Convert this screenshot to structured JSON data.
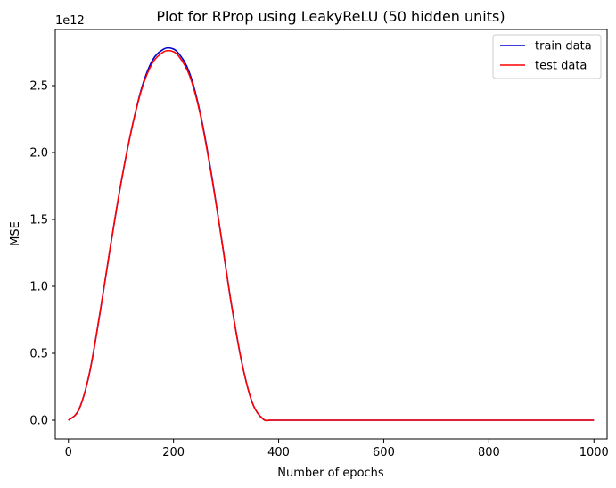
{
  "chart_data": {
    "type": "line",
    "title": "Plot for RProp using LeakyReLU (50 hidden units)",
    "xlabel": "Number of epochs",
    "ylabel": "MSE",
    "y_offset_label": "1e12",
    "y_scale": 1000000000000.0,
    "xlim": [
      -25,
      1025
    ],
    "ylim": [
      -0.14,
      2.92
    ],
    "xticks": [
      0,
      200,
      400,
      600,
      800,
      1000
    ],
    "xtick_labels": [
      "0",
      "200",
      "400",
      "600",
      "800",
      "1000"
    ],
    "yticks": [
      0.0,
      0.5,
      1.0,
      1.5,
      2.0,
      2.5
    ],
    "ytick_labels": [
      "0.0",
      "0.5",
      "1.0",
      "1.5",
      "2.0",
      "2.5"
    ],
    "grid": false,
    "legend_location": "top-right",
    "series": [
      {
        "name": "train data",
        "color": "#0000cc",
        "x": [
          0,
          20,
          40,
          60,
          80,
          100,
          120,
          140,
          160,
          180,
          195,
          210,
          230,
          250,
          270,
          290,
          310,
          330,
          350,
          370,
          385,
          400,
          500,
          600,
          700,
          800,
          900,
          1000
        ],
        "y": [
          0.0,
          0.08,
          0.35,
          0.8,
          1.3,
          1.77,
          2.17,
          2.49,
          2.69,
          2.77,
          2.78,
          2.74,
          2.6,
          2.31,
          1.89,
          1.39,
          0.87,
          0.43,
          0.13,
          0.01,
          0.0,
          0.0,
          0.0,
          0.0,
          0.0,
          0.0,
          0.0,
          0.0
        ]
      },
      {
        "name": "test data",
        "color": "#ff0000",
        "x": [
          0,
          20,
          40,
          60,
          80,
          100,
          120,
          140,
          160,
          180,
          195,
          210,
          230,
          250,
          270,
          290,
          310,
          330,
          350,
          370,
          385,
          400,
          500,
          600,
          700,
          800,
          900,
          1000
        ],
        "y": [
          0.0,
          0.08,
          0.35,
          0.8,
          1.3,
          1.77,
          2.17,
          2.48,
          2.67,
          2.75,
          2.76,
          2.72,
          2.58,
          2.3,
          1.88,
          1.39,
          0.87,
          0.43,
          0.13,
          0.01,
          0.0,
          0.0,
          0.0,
          0.0,
          0.0,
          0.0,
          0.0,
          0.0
        ]
      }
    ]
  }
}
